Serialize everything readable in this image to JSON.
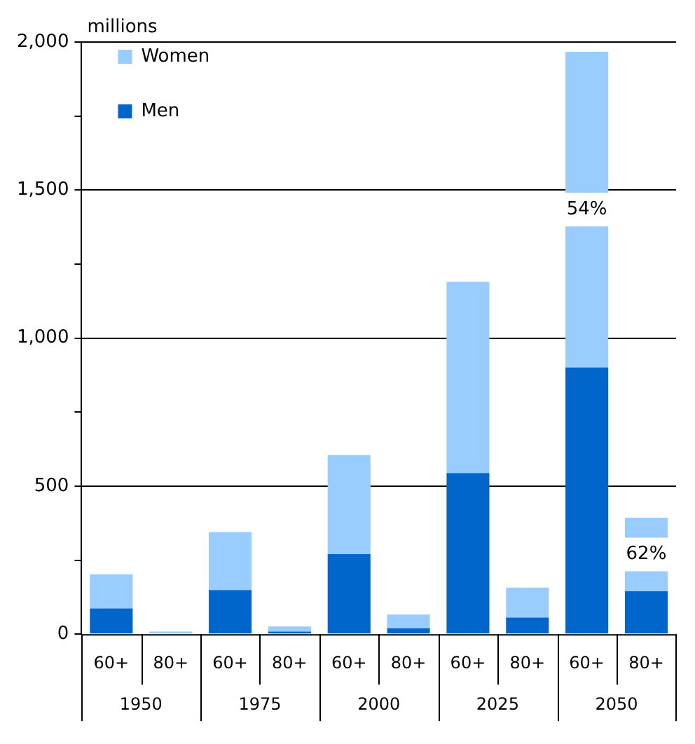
{
  "chart_data": {
    "type": "bar",
    "stacked": true,
    "ylabel": "millions",
    "categories": [
      "60+",
      "80+",
      "60+",
      "80+",
      "60+",
      "80+",
      "60+",
      "80+",
      "60+",
      "80+"
    ],
    "series": [
      {
        "name": "Men",
        "color": "#0066cc",
        "values": [
          87,
          null,
          149,
          9,
          270,
          20,
          544,
          56,
          901,
          145
        ]
      },
      {
        "name": "Women",
        "color": "#99ccff",
        "values": [
          115,
          9,
          196,
          17,
          335,
          46,
          646,
          101,
          1066,
          248
        ]
      }
    ],
    "annotations": [
      "1950",
      "1975",
      "2000",
      "2025",
      "2050",
      "54%",
      "62%"
    ],
    "ylim": [
      0,
      2000
    ],
    "yticks": [
      0,
      {
        "value": 250,
        "label": null
      },
      500,
      {
        "value": 750,
        "label": null
      },
      {
        "value": 1000,
        "label": "1,000"
      },
      {
        "value": 1250,
        "label": null
      },
      {
        "value": 1500,
        "label": "1,500"
      },
      {
        "value": 1750,
        "label": null
      },
      {
        "value": 2000,
        "label": "2,000"
      }
    ],
    "grid": "y",
    "legend": "top left"
  }
}
